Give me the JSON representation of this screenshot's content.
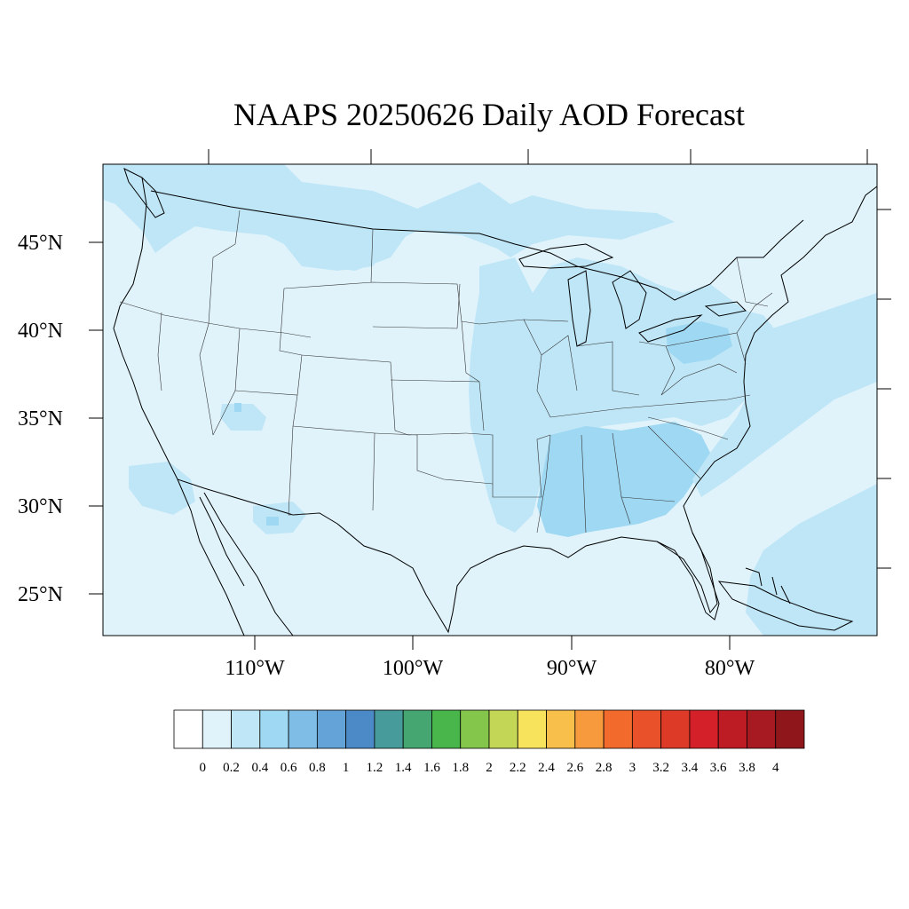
{
  "title": "NAAPS 20250626 Daily AOD Forecast",
  "map": {
    "lat_labels": [
      "45°N",
      "40°N",
      "35°N",
      "30°N",
      "25°N"
    ],
    "lon_labels": [
      "110°W",
      "100°W",
      "90°W",
      "80°W"
    ],
    "background_color": "#e0f3fb",
    "land_outline_color": "#000000"
  },
  "colorbar": {
    "colors": [
      "#ffffff",
      "#e0f3fb",
      "#bfe6f7",
      "#9fd8f2",
      "#80bde6",
      "#64a3d8",
      "#4b8ac6",
      "#479b9b",
      "#45a672",
      "#49b64b",
      "#84c54b",
      "#c4d655",
      "#f8e45c",
      "#f8bf4a",
      "#f7993d",
      "#f26b2c",
      "#e8512a",
      "#dd3a27",
      "#d42029",
      "#bd1c25",
      "#a71a21",
      "#8f171c"
    ],
    "labels": [
      "0",
      "0.2",
      "0.4",
      "0.6",
      "0.8",
      "1",
      "1.2",
      "1.4",
      "1.6",
      "1.8",
      "2",
      "2.2",
      "2.4",
      "2.6",
      "2.8",
      "3",
      "3.2",
      "3.4",
      "3.6",
      "3.8",
      "4"
    ]
  },
  "aod_fields": {
    "base_level": "0-0.2",
    "enhanced_level": "0.2-0.4",
    "local_maxima_level": "0.4-0.6",
    "enhanced_color": "#bfe6f7",
    "maxima_color": "#9fd8f2"
  }
}
